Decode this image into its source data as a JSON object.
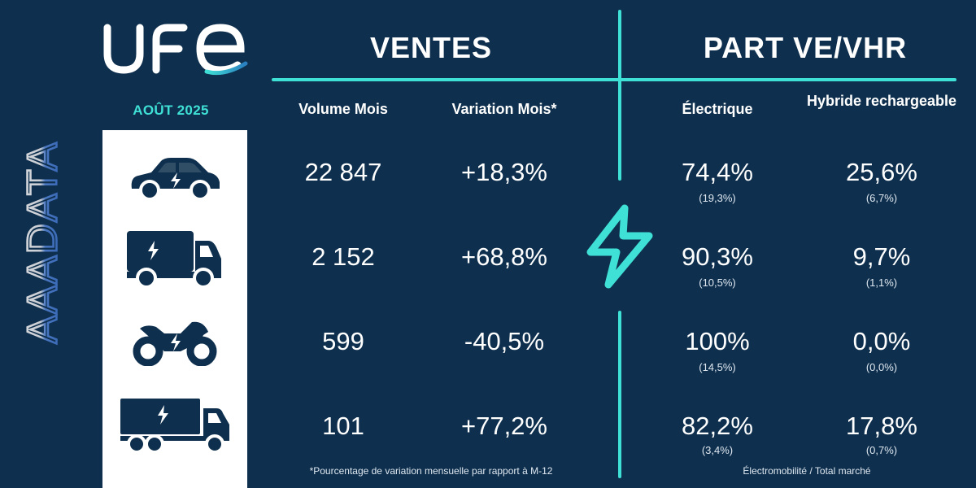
{
  "brand": {
    "logo_text": "UFE",
    "side_logo_text": "AAADATA"
  },
  "period": "AOÛT 2025",
  "sections": {
    "sales": "VENTES",
    "share": "PART VE/VHR"
  },
  "headers": {
    "volume": "Volume Mois",
    "variation": "Variation Mois*",
    "electric": "Électrique",
    "hybrid": "Hybride rechargeable"
  },
  "rows": [
    {
      "vehicle": "car-icon",
      "volume": "22 847",
      "variation": "+18,3%",
      "electric": "74,4%",
      "electric_total": "(19,3%)",
      "hybrid": "25,6%",
      "hybrid_total": "(6,7%)"
    },
    {
      "vehicle": "van-icon",
      "volume": "2 152",
      "variation": "+68,8%",
      "electric": "90,3%",
      "electric_total": "(10,5%)",
      "hybrid": "9,7%",
      "hybrid_total": "(1,1%)"
    },
    {
      "vehicle": "motorcycle-icon",
      "volume": "599",
      "variation": "-40,5%",
      "electric": "100%",
      "electric_total": "(14,5%)",
      "hybrid": "0,0%",
      "hybrid_total": "(0,0%)"
    },
    {
      "vehicle": "truck-icon",
      "volume": "101",
      "variation": "+77,2%",
      "electric": "82,2%",
      "electric_total": "(3,4%)",
      "hybrid": "17,8%",
      "hybrid_total": "(0,7%)"
    }
  ],
  "footnotes": {
    "variation": "*Pourcentage de variation mensuelle par rapport à M-12",
    "share": "Électromobilité / Total marché"
  },
  "colors": {
    "background": "#0e2f4d",
    "accent": "#3fe0d6",
    "icon": "#0e2f4d",
    "panel": "#ffffff"
  }
}
